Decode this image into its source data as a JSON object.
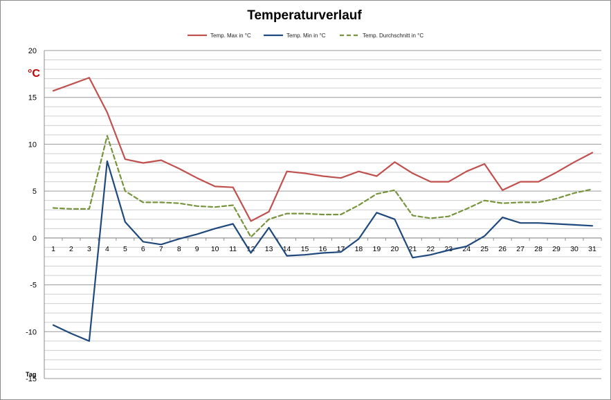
{
  "chart_data": {
    "type": "line",
    "title": "Temperaturverlauf",
    "ylabel": "°C",
    "xlabel": "Tag",
    "ylim": [
      -15,
      20
    ],
    "y_ticks": [
      20,
      15,
      10,
      5,
      0,
      -5,
      -10,
      -15
    ],
    "grid": true,
    "legend_placement": "top",
    "x": [
      "1",
      "2",
      "3",
      "4",
      "5",
      "6",
      "7",
      "8",
      "9",
      "10",
      "11",
      "12",
      "13",
      "14",
      "15",
      "16",
      "17",
      "18",
      "19",
      "20",
      "21",
      "22",
      "23",
      "24",
      "25",
      "26",
      "27",
      "28",
      "29",
      "30",
      "31"
    ],
    "series": [
      {
        "name": "Temp. Max in °C",
        "color": "#c0504d",
        "dashed": false,
        "values": [
          15.7,
          16.4,
          17.1,
          13.4,
          8.4,
          8.0,
          8.3,
          7.4,
          6.4,
          5.5,
          5.4,
          1.8,
          2.8,
          7.1,
          6.9,
          6.6,
          6.4,
          7.1,
          6.6,
          8.1,
          6.9,
          6.0,
          6.0,
          7.1,
          7.9,
          5.1,
          6.0,
          6.0,
          7.0,
          8.1,
          9.1
        ]
      },
      {
        "name": "Temp. Min in °C",
        "color": "#1f497d",
        "dashed": false,
        "values": [
          -9.3,
          -10.2,
          -11.0,
          8.2,
          1.7,
          -0.4,
          -0.7,
          -0.1,
          0.4,
          1.0,
          1.5,
          -1.6,
          1.1,
          -1.9,
          -1.8,
          -1.6,
          -1.5,
          -0.1,
          2.7,
          2.0,
          -2.1,
          -1.8,
          -1.3,
          -0.9,
          0.2,
          2.2,
          1.6,
          1.6,
          1.5,
          1.4,
          1.3
        ]
      },
      {
        "name": "Temp. Durchschnitt in °C",
        "color": "#77933c",
        "dashed": true,
        "values": [
          3.2,
          3.1,
          3.1,
          10.9,
          5.0,
          3.8,
          3.8,
          3.7,
          3.4,
          3.3,
          3.5,
          0.1,
          2.0,
          2.6,
          2.6,
          2.5,
          2.5,
          3.5,
          4.7,
          5.1,
          2.4,
          2.1,
          2.3,
          3.1,
          4.0,
          3.7,
          3.8,
          3.8,
          4.2,
          4.8,
          5.2
        ]
      }
    ]
  }
}
